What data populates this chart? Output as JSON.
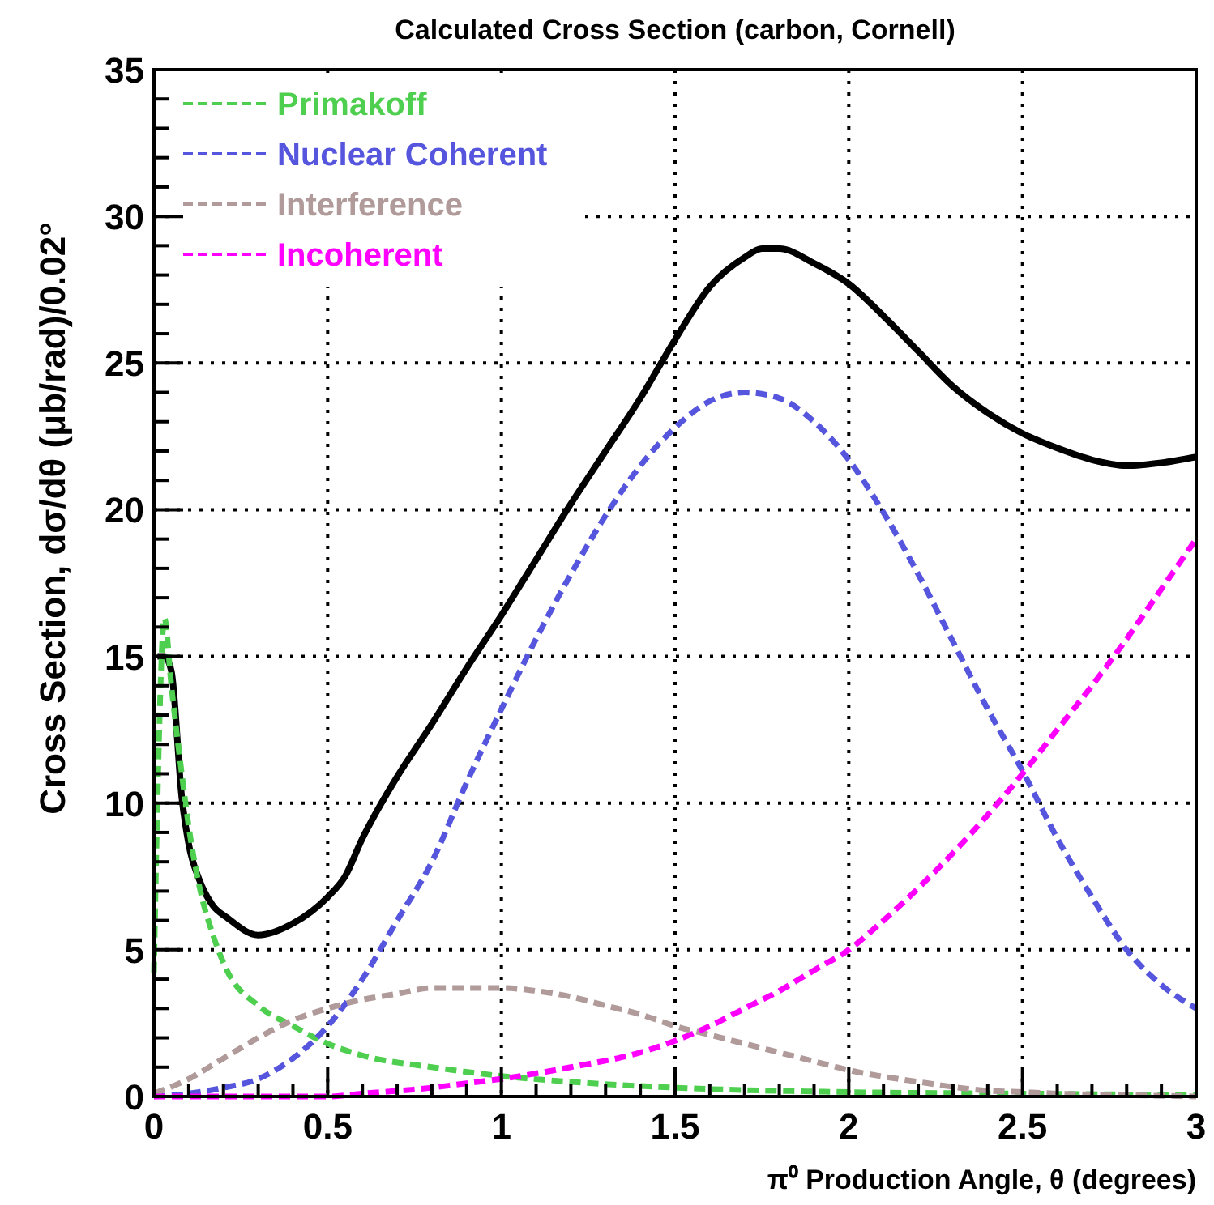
{
  "chart_data": {
    "type": "line",
    "title": "Calculated Cross Section (carbon, Cornell)",
    "xlabel": "π⁰ Production Angle, θ (degrees)",
    "ylabel": "Cross Section, dσ/dθ (μb/rad)/0.02°",
    "xlim": [
      0,
      3
    ],
    "ylim": [
      0,
      35
    ],
    "xticks": [
      0,
      0.5,
      1,
      1.5,
      2,
      2.5,
      3
    ],
    "yticks": [
      0,
      5,
      10,
      15,
      20,
      25,
      30,
      35
    ],
    "grid": true,
    "legend": "top left",
    "marker": "none",
    "series": [
      {
        "color": "#000000",
        "line_style": "solid",
        "x": [
          0.01,
          0.03,
          0.05,
          0.08,
          0.1,
          0.13,
          0.17,
          0.21,
          0.3,
          0.4,
          0.5,
          0.55,
          0.6,
          0.65,
          0.7,
          0.8,
          0.9,
          1.0,
          1.1,
          1.2,
          1.3,
          1.4,
          1.5,
          1.6,
          1.7,
          1.75,
          1.8,
          1.9,
          2.0,
          2.1,
          2.2,
          2.3,
          2.4,
          2.5,
          2.6,
          2.7,
          2.8,
          2.9,
          3.0
        ],
        "values": [
          15,
          15,
          14.5,
          10.2,
          8.6,
          7.4,
          6.5,
          6.1,
          5.5,
          5.9,
          6.8,
          7.5,
          8.8,
          9.9,
          10.9,
          12.7,
          14.6,
          16.4,
          18.3,
          20.2,
          22.0,
          23.8,
          25.8,
          27.6,
          28.6,
          28.9,
          28.9,
          28.4,
          27.7,
          26.6,
          25.4,
          24.2,
          23.3,
          22.6,
          22.1,
          21.7,
          21.5,
          21.6,
          21.8
        ]
      },
      {
        "name": "Primakoff",
        "color": "#4fcf4f",
        "line_style": "dashed",
        "x": [
          0,
          0.01,
          0.03,
          0.05,
          0.08,
          0.1,
          0.13,
          0.17,
          0.21,
          0.3,
          0.4,
          0.5,
          0.6,
          0.8,
          1.0,
          1.2,
          1.5,
          2.0,
          2.5,
          3.0
        ],
        "values": [
          4.2,
          10,
          16.3,
          14,
          11,
          9.2,
          7.2,
          5.5,
          4.3,
          3.1,
          2.4,
          1.8,
          1.4,
          1.0,
          0.7,
          0.5,
          0.3,
          0.15,
          0.1,
          0.05
        ]
      },
      {
        "name": "Nuclear Coherent",
        "color": "#5555dd",
        "line_style": "dashed",
        "x": [
          0,
          0.1,
          0.2,
          0.3,
          0.4,
          0.5,
          0.6,
          0.7,
          0.8,
          0.9,
          1.0,
          1.1,
          1.2,
          1.3,
          1.4,
          1.5,
          1.6,
          1.7,
          1.8,
          1.9,
          2.0,
          2.1,
          2.2,
          2.3,
          2.4,
          2.5,
          2.6,
          2.7,
          2.8,
          2.9,
          3.0
        ],
        "values": [
          0,
          0.1,
          0.3,
          0.6,
          1.3,
          2.4,
          4.0,
          6.0,
          8.0,
          10.7,
          13.2,
          15.6,
          17.8,
          19.8,
          21.5,
          22.8,
          23.7,
          24.0,
          23.8,
          23.0,
          21.7,
          19.9,
          17.8,
          15.5,
          13.2,
          11.1,
          8.8,
          6.8,
          5.0,
          3.8,
          3.0
        ]
      },
      {
        "name": "Interference",
        "color": "#b09a9a",
        "line_style": "dashed",
        "x": [
          0,
          0.1,
          0.2,
          0.3,
          0.4,
          0.5,
          0.6,
          0.7,
          0.8,
          0.9,
          1.0,
          1.1,
          1.2,
          1.3,
          1.4,
          1.5,
          1.6,
          1.7,
          1.8,
          1.9,
          2.0,
          2.2,
          2.4,
          2.5,
          2.6,
          2.8,
          3.0
        ],
        "values": [
          0.1,
          0.6,
          1.3,
          2.0,
          2.6,
          3.0,
          3.3,
          3.5,
          3.7,
          3.7,
          3.7,
          3.6,
          3.4,
          3.1,
          2.8,
          2.4,
          2.1,
          1.8,
          1.5,
          1.2,
          0.9,
          0.5,
          0.2,
          0.15,
          0.1,
          0.05,
          0
        ]
      },
      {
        "name": "Incoherent",
        "color": "#ff00ff",
        "line_style": "dashed",
        "x": [
          0,
          0.5,
          0.6,
          0.8,
          0.9,
          1.0,
          1.2,
          1.4,
          1.5,
          1.6,
          1.7,
          1.8,
          1.9,
          2.0,
          2.1,
          2.2,
          2.3,
          2.4,
          2.5,
          2.6,
          2.7,
          2.8,
          2.9,
          3.0
        ],
        "values": [
          0,
          0,
          0.1,
          0.3,
          0.45,
          0.6,
          1.0,
          1.5,
          1.9,
          2.4,
          3.0,
          3.6,
          4.3,
          5.0,
          6.0,
          7.1,
          8.3,
          9.6,
          11.0,
          12.5,
          14.0,
          15.6,
          17.3,
          19.0
        ]
      }
    ]
  }
}
